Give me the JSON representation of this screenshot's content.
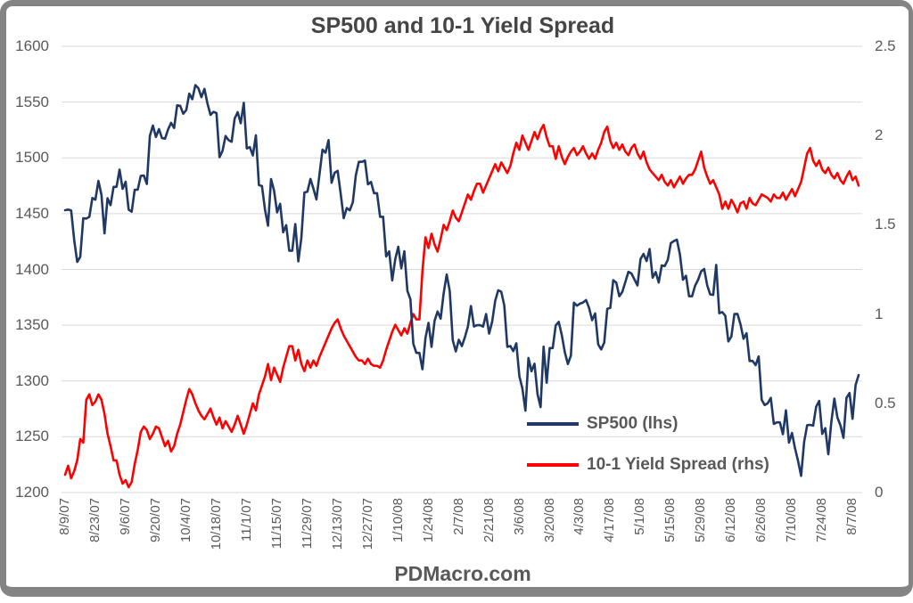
{
  "colors": {
    "sp500_line": "#1f3864",
    "spread_line": "#ff0000",
    "axis_text": "#595959",
    "title_text": "#454545",
    "gridline": "#d9d9d9",
    "frame": "#848484",
    "background": "#ffffff"
  },
  "chart_data": {
    "type": "line",
    "title": "SP500 and 10-1 Yield Spread",
    "footer": "PDMacro.com",
    "grid": "horizontal",
    "legend_position": "inside-right-bottom",
    "legend": [
      {
        "label": "SP500 (lhs)",
        "color": "#1f3864"
      },
      {
        "label": "10-1 Yield Spread (rhs)",
        "color": "#ff0000"
      }
    ],
    "left_axis": {
      "min": 1200,
      "max": 1600,
      "ticks": [
        1600,
        1550,
        1500,
        1450,
        1400,
        1350,
        1300,
        1250,
        1200
      ]
    },
    "right_axis": {
      "min": 0,
      "max": 2.5,
      "ticks": [
        2.5,
        2,
        1.5,
        1,
        0.5,
        0
      ]
    },
    "x_axis": {
      "tick_interval_points": 10,
      "tick_labels": [
        "8/9/07",
        "8/23/07",
        "9/6/07",
        "9/20/07",
        "10/4/07",
        "10/18/07",
        "11/1/07",
        "11/15/07",
        "11/29/07",
        "12/13/07",
        "12/27/07",
        "1/10/08",
        "1/24/08",
        "2/7/08",
        "2/21/08",
        "3/6/08",
        "3/20/08",
        "4/3/08",
        "4/17/08",
        "5/1/08",
        "5/15/08",
        "5/29/08",
        "6/12/08",
        "6/26/08",
        "7/10/08",
        "7/24/08",
        "8/7/08"
      ]
    },
    "series": [
      {
        "name": "SP500 (lhs)",
        "axis": "left",
        "color": "#1f3864",
        "values": [
          1453.09,
          1453.64,
          1452.92,
          1426.54,
          1406.7,
          1411.27,
          1445.94,
          1445.55,
          1447.12,
          1464.07,
          1462.5,
          1479.37,
          1466.79,
          1432.36,
          1463.76,
          1457.64,
          1473.99,
          1473.99,
          1489.42,
          1472.29,
          1478.55,
          1453.55,
          1451.7,
          1471.49,
          1471.56,
          1483.95,
          1484.25,
          1476.65,
          1519.78,
          1529.03,
          1518.75,
          1525.75,
          1517.73,
          1517.21,
          1525.42,
          1531.38,
          1526.75,
          1547.04,
          1546.63,
          1539.59,
          1542.84,
          1557.59,
          1552.58,
          1565.15,
          1562.47,
          1554.41,
          1561.8,
          1548.71,
          1538.53,
          1541.24,
          1540.08,
          1500.63,
          1506.33,
          1519.59,
          1515.88,
          1514.4,
          1535.28,
          1540.98,
          1531.02,
          1549.38,
          1508.44,
          1509.65,
          1502.17,
          1520.27,
          1475.62,
          1474.77,
          1453.7,
          1439.18,
          1481.05,
          1470.58,
          1451.15,
          1458.74,
          1433.27,
          1439.7,
          1416.77,
          1416.77,
          1440.7,
          1407.22,
          1428.23,
          1469.02,
          1469.72,
          1481.14,
          1472.42,
          1462.79,
          1485.01,
          1507.34,
          1504.66,
          1515.96,
          1477.65,
          1486.59,
          1488.41,
          1467.95,
          1445.9,
          1454.98,
          1453.0,
          1460.12,
          1484.46,
          1496.45,
          1496.45,
          1497.66,
          1476.27,
          1478.49,
          1468.36,
          1468.36,
          1447.16,
          1447.16,
          1411.63,
          1416.18,
          1390.19,
          1409.13,
          1420.33,
          1401.02,
          1416.25,
          1380.95,
          1373.2,
          1333.25,
          1325.19,
          1325.19,
          1310.5,
          1338.6,
          1352.07,
          1330.61,
          1353.96,
          1362.3,
          1355.81,
          1378.55,
          1395.42,
          1380.82,
          1336.64,
          1326.45,
          1336.91,
          1331.29,
          1339.13,
          1348.86,
          1367.21,
          1348.86,
          1349.99,
          1349.99,
          1348.78,
          1360.03,
          1342.53,
          1353.11,
          1371.8,
          1381.29,
          1380.02,
          1367.68,
          1330.63,
          1331.34,
          1326.75,
          1333.7,
          1304.34,
          1293.37,
          1273.37,
          1320.65,
          1308.77,
          1315.48,
          1288.14,
          1276.6,
          1330.74,
          1298.42,
          1329.51,
          1329.51,
          1349.88,
          1352.99,
          1341.13,
          1325.76,
          1315.22,
          1322.7,
          1370.18,
          1367.53,
          1369.31,
          1370.4,
          1372.54,
          1365.54,
          1354.49,
          1360.55,
          1332.83,
          1328.32,
          1334.43,
          1364.71,
          1365.56,
          1390.33,
          1388.17,
          1375.94,
          1379.93,
          1388.82,
          1397.84,
          1396.37,
          1390.94,
          1385.59,
          1409.34,
          1413.9,
          1407.49,
          1418.26,
          1392.57,
          1397.68,
          1388.28,
          1403.58,
          1403.04,
          1408.66,
          1423.57,
          1425.35,
          1426.63,
          1413.4,
          1390.71,
          1394.35,
          1375.93,
          1375.93,
          1385.35,
          1390.84,
          1398.26,
          1400.38,
          1385.67,
          1377.65,
          1377.2,
          1404.05,
          1360.68,
          1361.76,
          1358.44,
          1335.49,
          1339.87,
          1360.03,
          1360.14,
          1350.93,
          1337.81,
          1342.83,
          1317.93,
          1318.0,
          1314.29,
          1321.97,
          1283.15,
          1278.38,
          1280.0,
          1284.91,
          1261.52,
          1262.9,
          1262.9,
          1252.31,
          1273.7,
          1244.69,
          1253.39,
          1239.49,
          1228.3,
          1214.91,
          1245.36,
          1260.32,
          1260.68,
          1260.0,
          1277.0,
          1282.19,
          1252.54,
          1257.76,
          1234.37,
          1263.2,
          1284.26,
          1267.38,
          1260.31,
          1249.01,
          1284.88,
          1289.19,
          1266.07,
          1296.32,
          1305.32
        ]
      },
      {
        "name": "10-1 Yield Spread (rhs)",
        "axis": "right",
        "color": "#ff0000",
        "values": [
          0.1,
          0.15,
          0.08,
          0.12,
          0.18,
          0.3,
          0.28,
          0.52,
          0.55,
          0.49,
          0.51,
          0.55,
          0.52,
          0.44,
          0.33,
          0.26,
          0.18,
          0.18,
          0.1,
          0.05,
          0.07,
          0.03,
          0.06,
          0.16,
          0.24,
          0.34,
          0.37,
          0.35,
          0.3,
          0.33,
          0.37,
          0.36,
          0.31,
          0.26,
          0.29,
          0.23,
          0.26,
          0.33,
          0.38,
          0.45,
          0.52,
          0.58,
          0.55,
          0.5,
          0.46,
          0.43,
          0.41,
          0.44,
          0.47,
          0.42,
          0.38,
          0.42,
          0.36,
          0.4,
          0.37,
          0.34,
          0.38,
          0.43,
          0.38,
          0.33,
          0.38,
          0.44,
          0.5,
          0.46,
          0.55,
          0.6,
          0.65,
          0.72,
          0.63,
          0.7,
          0.66,
          0.62,
          0.7,
          0.76,
          0.82,
          0.82,
          0.74,
          0.8,
          0.72,
          0.68,
          0.74,
          0.7,
          0.74,
          0.71,
          0.76,
          0.8,
          0.84,
          0.88,
          0.92,
          0.95,
          0.97,
          0.92,
          0.88,
          0.85,
          0.82,
          0.79,
          0.76,
          0.74,
          0.74,
          0.72,
          0.75,
          0.72,
          0.71,
          0.71,
          0.7,
          0.74,
          0.8,
          0.85,
          0.9,
          0.94,
          0.91,
          0.88,
          0.92,
          0.89,
          0.95,
          1.0,
          0.97,
          0.97,
          1.24,
          1.43,
          1.37,
          1.45,
          1.39,
          1.35,
          1.42,
          1.5,
          1.47,
          1.52,
          1.58,
          1.54,
          1.52,
          1.57,
          1.62,
          1.67,
          1.64,
          1.69,
          1.73,
          1.73,
          1.68,
          1.72,
          1.76,
          1.8,
          1.84,
          1.8,
          1.85,
          1.82,
          1.79,
          1.83,
          1.9,
          1.96,
          1.92,
          2.0,
          1.96,
          1.92,
          1.97,
          2.02,
          1.98,
          2.03,
          2.06,
          1.99,
          1.94,
          1.94,
          1.87,
          1.94,
          1.88,
          1.84,
          1.88,
          1.91,
          1.93,
          1.89,
          1.91,
          1.94,
          1.9,
          1.87,
          1.9,
          1.87,
          1.92,
          1.96,
          2.02,
          2.05,
          1.97,
          1.93,
          1.96,
          1.92,
          1.95,
          1.91,
          1.89,
          1.93,
          1.95,
          1.9,
          1.87,
          1.91,
          1.85,
          1.81,
          1.79,
          1.77,
          1.75,
          1.78,
          1.74,
          1.72,
          1.75,
          1.71,
          1.74,
          1.77,
          1.73,
          1.76,
          1.78,
          1.78,
          1.81,
          1.86,
          1.91,
          1.82,
          1.77,
          1.73,
          1.75,
          1.71,
          1.67,
          1.59,
          1.63,
          1.59,
          1.64,
          1.61,
          1.57,
          1.62,
          1.63,
          1.59,
          1.65,
          1.62,
          1.61,
          1.64,
          1.67,
          1.66,
          1.65,
          1.63,
          1.67,
          1.65,
          1.65,
          1.68,
          1.64,
          1.67,
          1.7,
          1.66,
          1.7,
          1.74,
          1.82,
          1.9,
          1.93,
          1.86,
          1.83,
          1.86,
          1.81,
          1.79,
          1.82,
          1.78,
          1.76,
          1.79,
          1.75,
          1.73,
          1.77,
          1.8,
          1.75,
          1.77,
          1.72
        ]
      }
    ]
  }
}
